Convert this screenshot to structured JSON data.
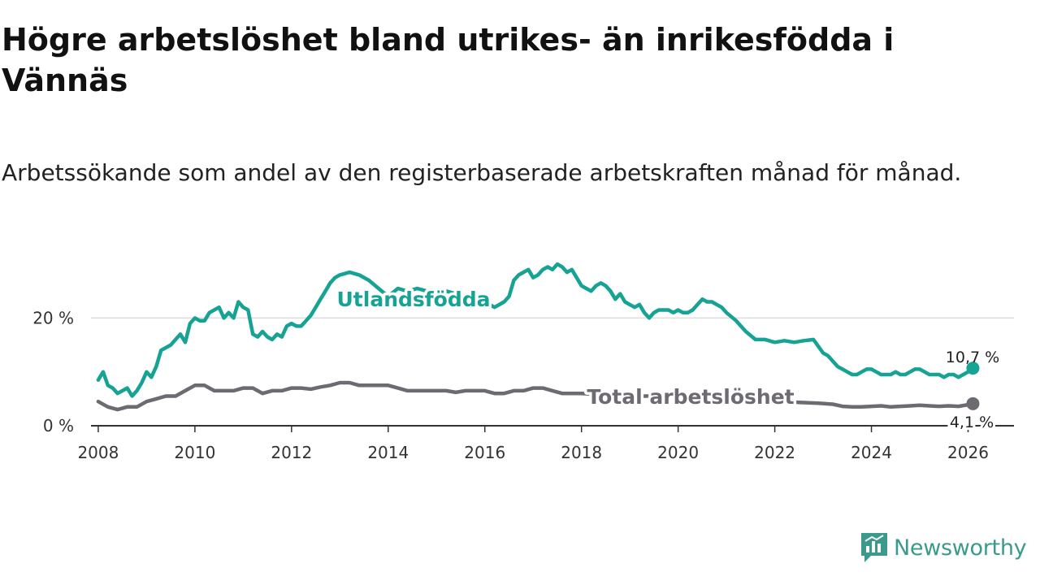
{
  "title": "Högre arbetslöshet bland utrikes- än inrikesfödda i Vännäs",
  "subtitle": "Arbetssökande som andel av den registerbaserade arbetskraften månad för månad.",
  "brand": {
    "name": "Newsworthy",
    "color": "#3a9a8c"
  },
  "colors": {
    "utlandsfodda": "#16a394",
    "total": "#6d6a72",
    "grid": "#dddddd",
    "axis": "#333333"
  },
  "chart_data": {
    "type": "line",
    "title": "Högre arbetslöshet bland utrikes- än inrikesfödda i Vännäs",
    "xlabel": "",
    "ylabel": "",
    "xlim": [
      2007.85,
      2026.95
    ],
    "ylim": [
      0,
      35
    ],
    "xticks": [
      2008,
      2010,
      2012,
      2014,
      2016,
      2018,
      2020,
      2022,
      2024,
      2026
    ],
    "yticks": [
      0,
      20
    ],
    "ytick_labels": [
      "0 %",
      "20 %"
    ],
    "grid": "horizontal",
    "series": [
      {
        "name": "Utlandsfödda",
        "label": "Utlandsfödda",
        "end_label": "10,7 %",
        "x": [
          2008.0,
          2008.1,
          2008.2,
          2008.3,
          2008.4,
          2008.5,
          2008.6,
          2008.7,
          2008.8,
          2008.9,
          2009.0,
          2009.1,
          2009.2,
          2009.3,
          2009.4,
          2009.5,
          2009.6,
          2009.7,
          2009.8,
          2009.9,
          2010.0,
          2010.1,
          2010.2,
          2010.3,
          2010.4,
          2010.5,
          2010.6,
          2010.7,
          2010.8,
          2010.9,
          2011.0,
          2011.1,
          2011.2,
          2011.3,
          2011.4,
          2011.5,
          2011.6,
          2011.7,
          2011.8,
          2011.9,
          2012.0,
          2012.1,
          2012.2,
          2012.3,
          2012.4,
          2012.5,
          2012.6,
          2012.7,
          2012.8,
          2012.9,
          2013.0,
          2013.2,
          2013.4,
          2013.6,
          2013.8,
          2014.0,
          2014.2,
          2014.4,
          2014.6,
          2014.8,
          2015.0,
          2015.2,
          2015.4,
          2015.6,
          2015.8,
          2015.9,
          2016.0,
          2016.1,
          2016.2,
          2016.3,
          2016.4,
          2016.5,
          2016.6,
          2016.7,
          2016.8,
          2016.9,
          2017.0,
          2017.1,
          2017.2,
          2017.3,
          2017.4,
          2017.5,
          2017.6,
          2017.7,
          2017.8,
          2017.9,
          2018.0,
          2018.1,
          2018.2,
          2018.3,
          2018.4,
          2018.5,
          2018.6,
          2018.7,
          2018.8,
          2018.9,
          2019.0,
          2019.1,
          2019.2,
          2019.3,
          2019.4,
          2019.5,
          2019.6,
          2019.7,
          2019.8,
          2019.9,
          2020.0,
          2020.1,
          2020.2,
          2020.3,
          2020.4,
          2020.5,
          2020.6,
          2020.7,
          2020.8,
          2020.9,
          2021.0,
          2021.2,
          2021.4,
          2021.6,
          2021.8,
          2022.0,
          2022.2,
          2022.4,
          2022.6,
          2022.8,
          2023.0,
          2023.1,
          2023.2,
          2023.3,
          2023.4,
          2023.5,
          2023.6,
          2023.7,
          2023.8,
          2023.9,
          2024.0,
          2024.1,
          2024.2,
          2024.3,
          2024.4,
          2024.5,
          2024.6,
          2024.7,
          2024.8,
          2024.9,
          2025.0,
          2025.1,
          2025.2,
          2025.3,
          2025.4,
          2025.5,
          2025.6,
          2025.7,
          2025.8,
          2025.9,
          2026.0,
          2026.1
        ],
        "values": [
          8.5,
          10.0,
          7.5,
          7.0,
          6.0,
          6.5,
          7.0,
          5.5,
          6.5,
          8.0,
          10.0,
          9.0,
          11.0,
          14.0,
          14.5,
          15.0,
          16.0,
          17.0,
          15.5,
          19.0,
          20.0,
          19.5,
          19.5,
          21.0,
          21.5,
          22.0,
          20.0,
          21.0,
          20.0,
          23.0,
          22.0,
          21.5,
          17.0,
          16.5,
          17.5,
          16.5,
          16.0,
          17.0,
          16.5,
          18.5,
          19.0,
          18.5,
          18.5,
          19.5,
          20.5,
          22.0,
          23.5,
          25.0,
          26.5,
          27.5,
          28.0,
          28.5,
          28.0,
          27.0,
          25.5,
          24.0,
          25.5,
          25.0,
          25.5,
          25.0,
          24.5,
          25.0,
          24.5,
          24.0,
          23.5,
          24.0,
          23.5,
          22.5,
          22.0,
          22.5,
          23.0,
          24.0,
          27.0,
          28.0,
          28.5,
          29.0,
          27.5,
          28.0,
          29.0,
          29.5,
          29.0,
          30.0,
          29.5,
          28.5,
          29.0,
          27.5,
          26.0,
          25.5,
          25.0,
          26.0,
          26.5,
          26.0,
          25.0,
          23.5,
          24.5,
          23.0,
          22.5,
          22.0,
          22.5,
          21.0,
          20.0,
          21.0,
          21.5,
          21.5,
          21.5,
          21.0,
          21.5,
          21.0,
          21.0,
          21.5,
          22.5,
          23.5,
          23.0,
          23.0,
          22.5,
          22.0,
          21.0,
          19.5,
          17.5,
          16.0,
          16.0,
          15.5,
          15.8,
          15.5,
          15.8,
          16.0,
          13.5,
          13.0,
          12.0,
          11.0,
          10.5,
          10.0,
          9.5,
          9.5,
          10.0,
          10.5,
          10.5,
          10.0,
          9.5,
          9.5,
          9.5,
          10.0,
          9.5,
          9.5,
          10.0,
          10.5,
          10.5,
          10.0,
          9.5,
          9.5,
          9.5,
          9.0,
          9.5,
          9.5,
          9.0,
          9.5,
          10.0,
          10.7
        ]
      },
      {
        "name": "Total arbetslöshet",
        "label": "Total arbetslöshet",
        "end_label": "4,1 %",
        "x": [
          2008.0,
          2008.2,
          2008.4,
          2008.6,
          2008.8,
          2009.0,
          2009.2,
          2009.4,
          2009.6,
          2009.8,
          2010.0,
          2010.2,
          2010.4,
          2010.6,
          2010.8,
          2011.0,
          2011.2,
          2011.4,
          2011.6,
          2011.8,
          2012.0,
          2012.2,
          2012.4,
          2012.6,
          2012.8,
          2013.0,
          2013.2,
          2013.4,
          2013.6,
          2013.8,
          2014.0,
          2014.2,
          2014.4,
          2014.6,
          2014.8,
          2015.0,
          2015.2,
          2015.4,
          2015.6,
          2015.8,
          2016.0,
          2016.2,
          2016.4,
          2016.6,
          2016.8,
          2017.0,
          2017.2,
          2017.4,
          2017.6,
          2017.8,
          2018.0,
          2018.4,
          2018.8,
          2019.2,
          2019.6,
          2020.0,
          2020.4,
          2020.8,
          2021.2,
          2021.6,
          2022.0,
          2022.3,
          2022.6,
          2022.9,
          2023.2,
          2023.4,
          2023.6,
          2023.8,
          2024.0,
          2024.2,
          2024.4,
          2024.6,
          2024.8,
          2025.0,
          2025.2,
          2025.4,
          2025.6,
          2025.8,
          2026.0,
          2026.1
        ],
        "values": [
          4.5,
          3.5,
          3.0,
          3.5,
          3.5,
          4.5,
          5.0,
          5.5,
          5.5,
          6.5,
          7.5,
          7.5,
          6.5,
          6.5,
          6.5,
          7.0,
          7.0,
          6.0,
          6.5,
          6.5,
          7.0,
          7.0,
          6.8,
          7.2,
          7.5,
          8.0,
          8.0,
          7.5,
          7.5,
          7.5,
          7.5,
          7.0,
          6.5,
          6.5,
          6.5,
          6.5,
          6.5,
          6.2,
          6.5,
          6.5,
          6.5,
          6.0,
          6.0,
          6.5,
          6.5,
          7.0,
          7.0,
          6.5,
          6.0,
          6.0,
          6.0,
          5.8,
          5.6,
          5.5,
          5.5,
          5.5,
          5.3,
          5.2,
          5.0,
          4.8,
          4.6,
          4.4,
          4.3,
          4.2,
          4.0,
          3.6,
          3.5,
          3.5,
          3.6,
          3.7,
          3.5,
          3.6,
          3.7,
          3.8,
          3.7,
          3.6,
          3.7,
          3.6,
          3.9,
          4.1
        ]
      }
    ]
  }
}
